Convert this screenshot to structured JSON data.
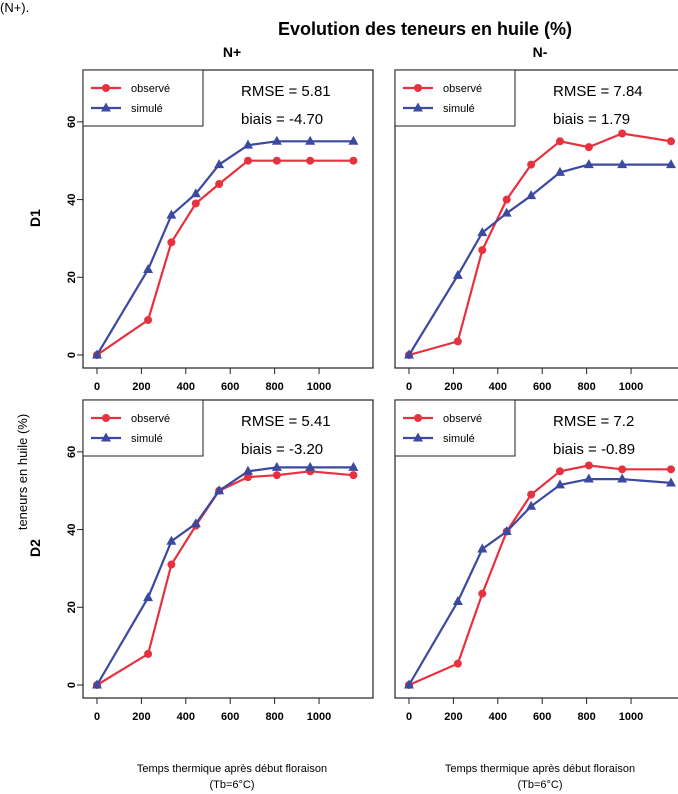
{
  "corner_text": "(N+).",
  "title": "Evolution des teneurs en huile (%)",
  "ylabel": "teneurs en huile (%)",
  "xlabel_line1": "Temps thermique après début floraison",
  "xlabel_line2": "(Tb=6°C)",
  "column_labels": [
    "N+",
    "N-"
  ],
  "row_labels": [
    "D1",
    "D2"
  ],
  "colors": {
    "observed": "#e8313e",
    "simulated": "#3b49a0"
  },
  "chart_data": [
    {
      "type": "line",
      "panel": "D1 N+",
      "xlim": [
        0,
        1180
      ],
      "ylim": [
        0,
        70
      ],
      "xticks": [
        0,
        200,
        400,
        600,
        800,
        1000
      ],
      "yticks": [
        0,
        20,
        40,
        60
      ],
      "legend": [
        "observé",
        "simulé"
      ],
      "stats": [
        "RMSE = 5.81",
        "biais = -4.70"
      ],
      "series": [
        {
          "name": "observé",
          "x": [
            0,
            230,
            335,
            445,
            550,
            680,
            810,
            960,
            1155
          ],
          "values": [
            0,
            9,
            29,
            39,
            44,
            50,
            50,
            50,
            50
          ]
        },
        {
          "name": "simulé",
          "x": [
            0,
            230,
            335,
            445,
            550,
            680,
            810,
            960,
            1155
          ],
          "values": [
            0,
            22,
            36,
            41.5,
            49,
            54,
            55,
            55,
            55
          ]
        }
      ]
    },
    {
      "type": "line",
      "panel": "D1 N-",
      "xlim": [
        0,
        1180
      ],
      "ylim": [
        0,
        70
      ],
      "xticks": [
        0,
        200,
        400,
        600,
        800,
        1000
      ],
      "yticks": [
        0,
        20,
        40,
        60
      ],
      "legend": [
        "observé",
        "simulé"
      ],
      "stats": [
        "RMSE = 7.84",
        "biais = 1.79"
      ],
      "series": [
        {
          "name": "observé",
          "x": [
            0,
            220,
            330,
            440,
            550,
            680,
            810,
            960,
            1180
          ],
          "values": [
            0,
            3.5,
            27,
            40,
            49,
            55,
            53.5,
            57,
            55
          ]
        },
        {
          "name": "simulé",
          "x": [
            0,
            220,
            330,
            440,
            550,
            680,
            810,
            960,
            1180
          ],
          "values": [
            0,
            20.5,
            31.5,
            36.5,
            41,
            47,
            49,
            49,
            49
          ]
        }
      ]
    },
    {
      "type": "line",
      "panel": "D2 N+",
      "xlim": [
        0,
        1180
      ],
      "ylim": [
        0,
        70
      ],
      "xticks": [
        0,
        200,
        400,
        600,
        800,
        1000
      ],
      "yticks": [
        0,
        20,
        40,
        60
      ],
      "legend": [
        "observé",
        "simulé"
      ],
      "stats": [
        "RMSE = 5.41",
        "biais = -3.20"
      ],
      "series": [
        {
          "name": "observé",
          "x": [
            0,
            230,
            335,
            445,
            550,
            680,
            810,
            960,
            1155
          ],
          "values": [
            0,
            8,
            31,
            41,
            50,
            53.5,
            54,
            55,
            54
          ]
        },
        {
          "name": "simulé",
          "x": [
            0,
            230,
            335,
            445,
            550,
            680,
            810,
            960,
            1155
          ],
          "values": [
            0,
            22.5,
            37,
            41.5,
            50,
            55,
            56,
            56,
            56
          ]
        }
      ]
    },
    {
      "type": "line",
      "panel": "D2 N-",
      "xlim": [
        0,
        1180
      ],
      "ylim": [
        0,
        70
      ],
      "xticks": [
        0,
        200,
        400,
        600,
        800,
        1000
      ],
      "yticks": [
        0,
        20,
        40,
        60
      ],
      "legend": [
        "observé",
        "simulé"
      ],
      "stats": [
        "RMSE = 7.2",
        "biais = -0.89"
      ],
      "series": [
        {
          "name": "observé",
          "x": [
            0,
            220,
            330,
            440,
            550,
            680,
            810,
            960,
            1180
          ],
          "values": [
            0,
            5.5,
            23.5,
            39.5,
            49,
            55,
            56.5,
            55.5,
            55.5
          ]
        },
        {
          "name": "simulé",
          "x": [
            0,
            220,
            330,
            440,
            550,
            680,
            810,
            960,
            1180
          ],
          "values": [
            0,
            21.5,
            35,
            39.5,
            46,
            51.5,
            53,
            53,
            52
          ]
        }
      ]
    }
  ]
}
